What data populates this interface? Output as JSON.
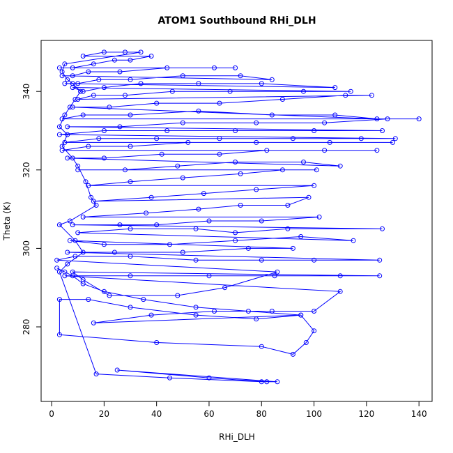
{
  "chart_data": {
    "type": "scatter",
    "title": "ATOM1 Southbound RHi_DLH",
    "xlabel": "RHi_DLH",
    "ylabel": "Theta (K)",
    "xlim": [
      -4,
      145
    ],
    "ylim": [
      261,
      353
    ],
    "x_ticks": [
      0,
      20,
      40,
      60,
      80,
      100,
      120,
      140
    ],
    "y_ticks": [
      280,
      300,
      320,
      340
    ],
    "grid": false,
    "legend": "none",
    "marker": "open-circle",
    "connected": true,
    "color": "#0000ff",
    "series": [
      {
        "points": [
          [
            2,
            295
          ],
          [
            5,
            294
          ],
          [
            8,
            293
          ],
          [
            12,
            291
          ],
          [
            20,
            289
          ],
          [
            35,
            287
          ],
          [
            55,
            285
          ],
          [
            75,
            284
          ],
          [
            95,
            283
          ],
          [
            78,
            282
          ],
          [
            55,
            283
          ],
          [
            30,
            285
          ],
          [
            14,
            287
          ],
          [
            3,
            287
          ],
          [
            3,
            278
          ],
          [
            40,
            276
          ],
          [
            80,
            275
          ],
          [
            92,
            273
          ],
          [
            97,
            276
          ],
          [
            100,
            279
          ],
          [
            95,
            283
          ],
          [
            16,
            281
          ],
          [
            38,
            283
          ],
          [
            62,
            284
          ],
          [
            84,
            284
          ],
          [
            100,
            284
          ],
          [
            110,
            289
          ],
          [
            5,
            293
          ],
          [
            30,
            293
          ],
          [
            60,
            293
          ],
          [
            85,
            293
          ],
          [
            110,
            293
          ],
          [
            125,
            293
          ],
          [
            8,
            294
          ],
          [
            12,
            292
          ],
          [
            22,
            288
          ],
          [
            48,
            288
          ],
          [
            66,
            290
          ],
          [
            86,
            294
          ],
          [
            2,
            297
          ],
          [
            9,
            298
          ],
          [
            30,
            298
          ],
          [
            55,
            297
          ],
          [
            80,
            297
          ],
          [
            100,
            297
          ],
          [
            125,
            297
          ],
          [
            6,
            299
          ],
          [
            24,
            299
          ],
          [
            50,
            299
          ],
          [
            75,
            300
          ],
          [
            92,
            300
          ],
          [
            7,
            302
          ],
          [
            20,
            301
          ],
          [
            45,
            301
          ],
          [
            70,
            302
          ],
          [
            95,
            303
          ],
          [
            115,
            302
          ],
          [
            10,
            304
          ],
          [
            30,
            305
          ],
          [
            55,
            305
          ],
          [
            70,
            304
          ],
          [
            90,
            305
          ],
          [
            126,
            305
          ],
          [
            8,
            306
          ],
          [
            26,
            306
          ],
          [
            40,
            306
          ],
          [
            60,
            307
          ],
          [
            80,
            307
          ],
          [
            102,
            308
          ],
          [
            12,
            308
          ],
          [
            36,
            309
          ],
          [
            56,
            310
          ],
          [
            72,
            311
          ],
          [
            90,
            311
          ],
          [
            98,
            313
          ],
          [
            16,
            312
          ],
          [
            38,
            313
          ],
          [
            58,
            314
          ],
          [
            78,
            315
          ],
          [
            100,
            316
          ],
          [
            14,
            316
          ],
          [
            30,
            317
          ],
          [
            50,
            318
          ],
          [
            72,
            319
          ],
          [
            88,
            320
          ],
          [
            101,
            320
          ],
          [
            10,
            320
          ],
          [
            28,
            320
          ],
          [
            48,
            321
          ],
          [
            70,
            322
          ],
          [
            96,
            322
          ],
          [
            110,
            321
          ],
          [
            6,
            323
          ],
          [
            20,
            323
          ],
          [
            42,
            324
          ],
          [
            64,
            324
          ],
          [
            82,
            325
          ],
          [
            104,
            325
          ],
          [
            124,
            325
          ],
          [
            4,
            325
          ],
          [
            14,
            326
          ],
          [
            30,
            326
          ],
          [
            52,
            327
          ],
          [
            78,
            327
          ],
          [
            106,
            327
          ],
          [
            130,
            327
          ],
          [
            5,
            327
          ],
          [
            18,
            328
          ],
          [
            40,
            328
          ],
          [
            64,
            328
          ],
          [
            92,
            328
          ],
          [
            118,
            328
          ],
          [
            131,
            328
          ],
          [
            3,
            329
          ],
          [
            20,
            330
          ],
          [
            44,
            330
          ],
          [
            70,
            330
          ],
          [
            100,
            330
          ],
          [
            126,
            330
          ],
          [
            6,
            331
          ],
          [
            26,
            331
          ],
          [
            50,
            332
          ],
          [
            78,
            332
          ],
          [
            104,
            332
          ],
          [
            128,
            333
          ],
          [
            140,
            333
          ],
          [
            4,
            333
          ],
          [
            12,
            334
          ],
          [
            30,
            334
          ],
          [
            56,
            335
          ],
          [
            84,
            334
          ],
          [
            108,
            334
          ],
          [
            124,
            333
          ],
          [
            8,
            336
          ],
          [
            22,
            336
          ],
          [
            40,
            337
          ],
          [
            64,
            337
          ],
          [
            88,
            338
          ],
          [
            112,
            339
          ],
          [
            122,
            339
          ],
          [
            10,
            338
          ],
          [
            16,
            339
          ],
          [
            28,
            339
          ],
          [
            46,
            340
          ],
          [
            68,
            340
          ],
          [
            96,
            340
          ],
          [
            114,
            340
          ],
          [
            8,
            341
          ],
          [
            12,
            340
          ],
          [
            20,
            341
          ],
          [
            34,
            342
          ],
          [
            56,
            342
          ],
          [
            80,
            342
          ],
          [
            108,
            341
          ],
          [
            5,
            342
          ],
          [
            10,
            342
          ],
          [
            18,
            343
          ],
          [
            30,
            343
          ],
          [
            50,
            344
          ],
          [
            72,
            344
          ],
          [
            84,
            343
          ],
          [
            4,
            344
          ],
          [
            8,
            344
          ],
          [
            14,
            345
          ],
          [
            26,
            345
          ],
          [
            44,
            346
          ],
          [
            62,
            346
          ],
          [
            70,
            346
          ],
          [
            3,
            346
          ],
          [
            8,
            346
          ],
          [
            16,
            347
          ],
          [
            24,
            348
          ],
          [
            30,
            348
          ],
          [
            38,
            349
          ],
          [
            12,
            349
          ],
          [
            20,
            350
          ],
          [
            28,
            350
          ],
          [
            34,
            350
          ],
          [
            5,
            347
          ],
          [
            4,
            345
          ],
          [
            6,
            343
          ],
          [
            8,
            342
          ],
          [
            11,
            340
          ],
          [
            9,
            338
          ],
          [
            7,
            336
          ],
          [
            5,
            334
          ],
          [
            3,
            331
          ],
          [
            6,
            329
          ],
          [
            4,
            326
          ],
          [
            8,
            323
          ],
          [
            10,
            321
          ],
          [
            13,
            317
          ],
          [
            15,
            313
          ],
          [
            17,
            311
          ],
          [
            7,
            307
          ],
          [
            3,
            306
          ],
          [
            9,
            302
          ],
          [
            12,
            299
          ],
          [
            6,
            296
          ],
          [
            3,
            294
          ],
          [
            17,
            268
          ],
          [
            45,
            267
          ],
          [
            80,
            266
          ],
          [
            86,
            266
          ],
          [
            25,
            269
          ],
          [
            60,
            267
          ],
          [
            82,
            266
          ]
        ]
      }
    ]
  }
}
